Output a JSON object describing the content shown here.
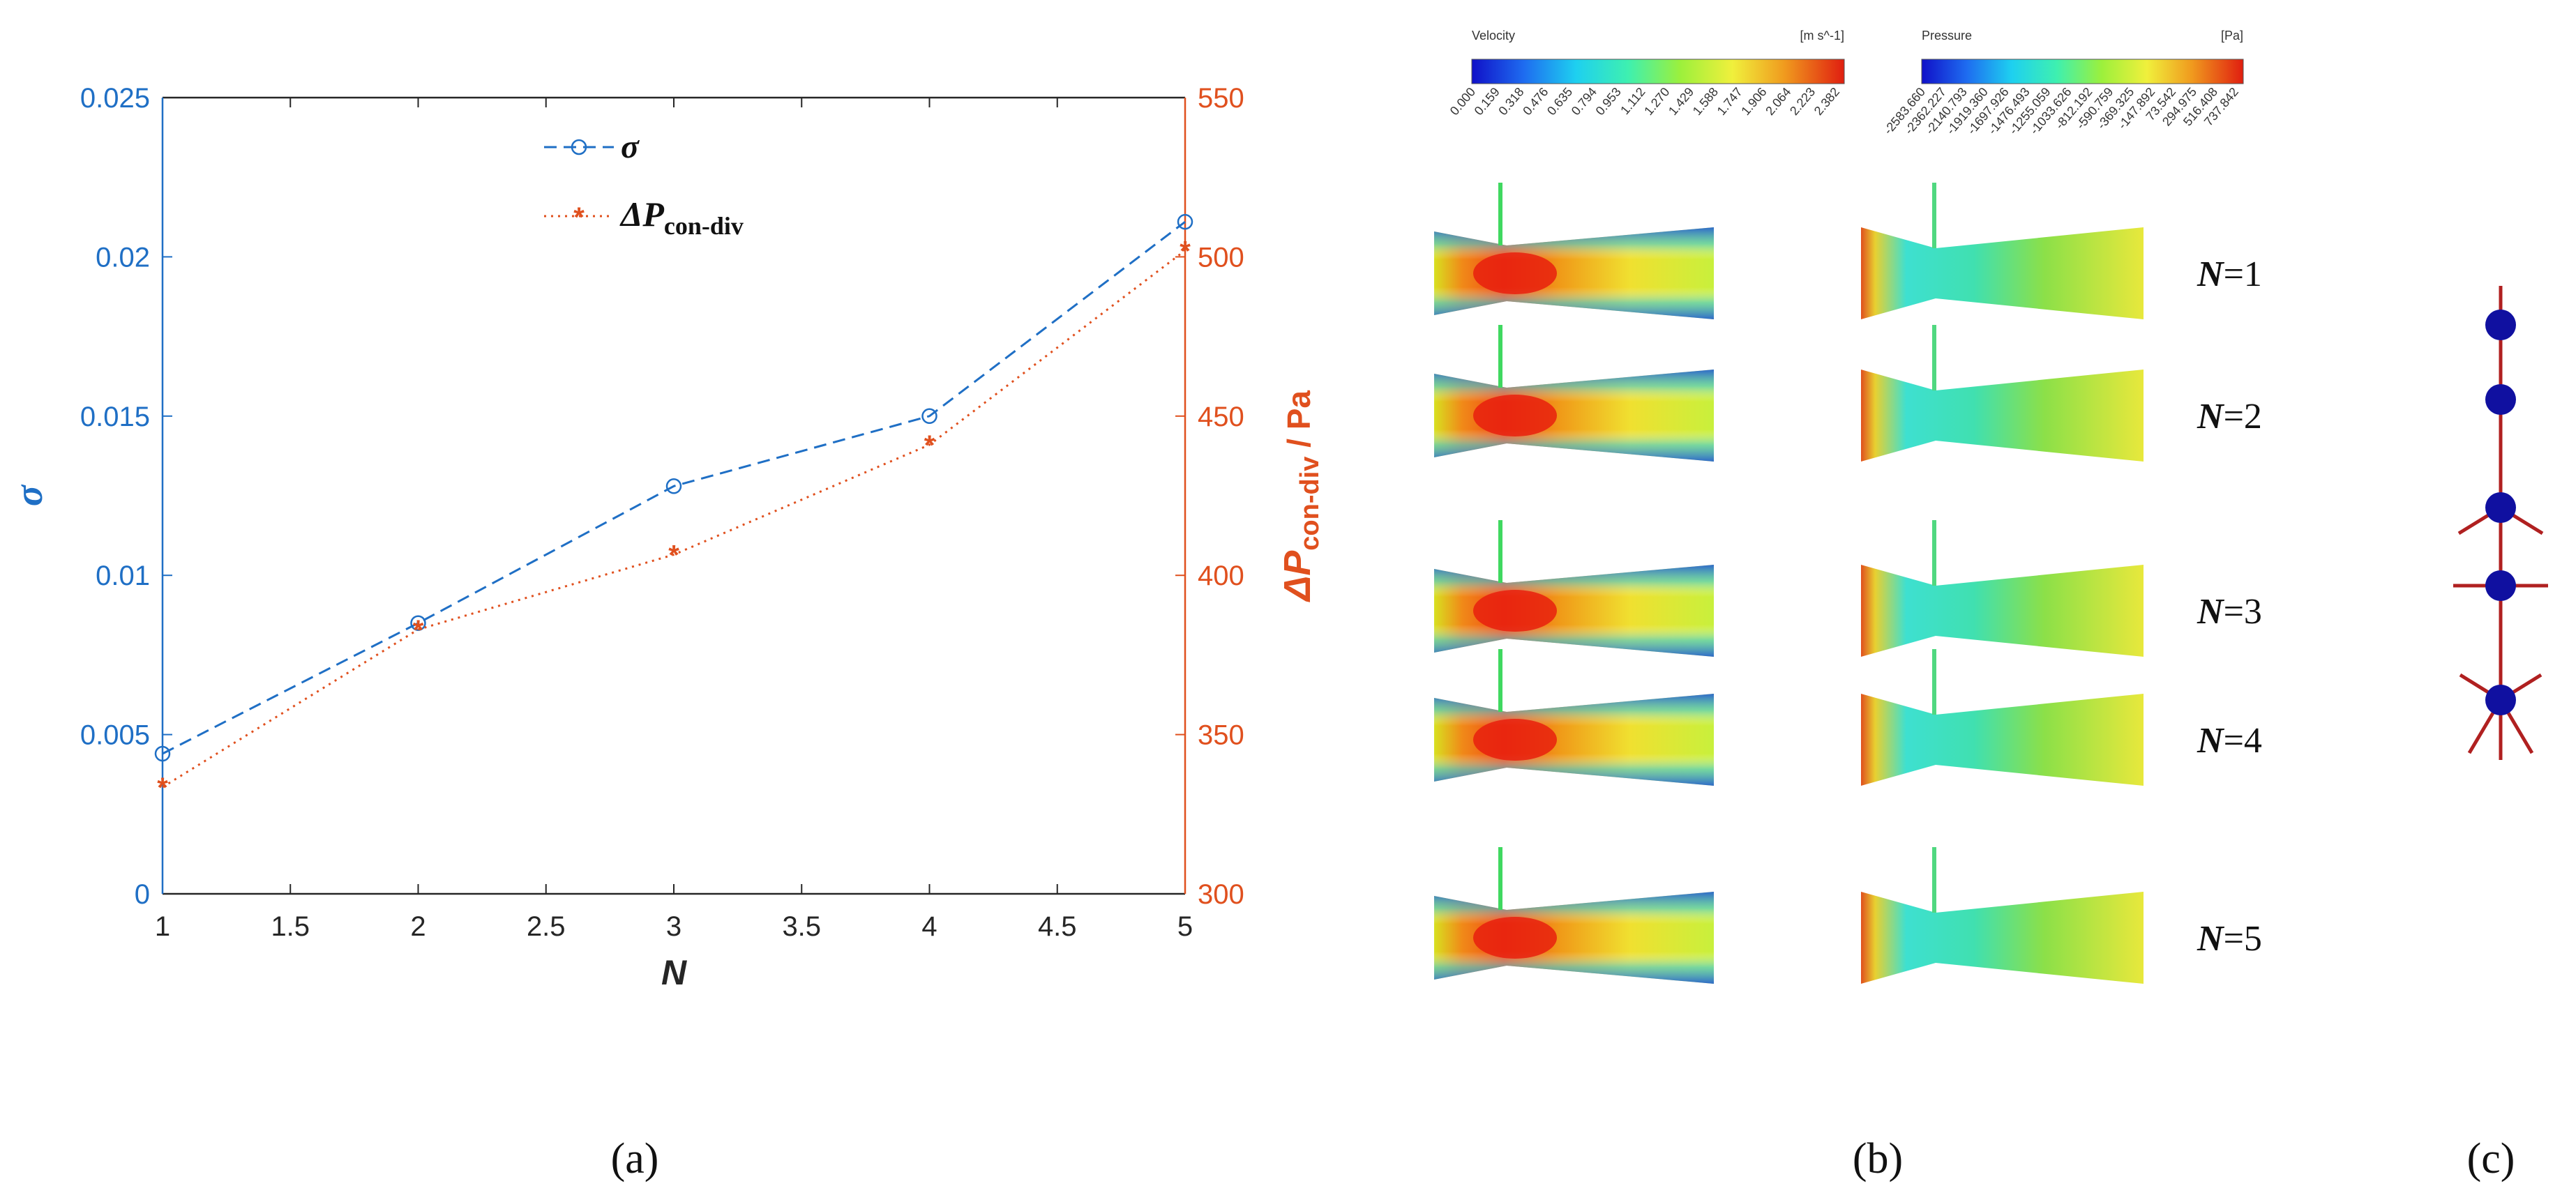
{
  "chart_data": [
    {
      "type": "line",
      "panel_label": "(a)",
      "x": [
        1,
        2,
        3,
        4,
        5
      ],
      "xlabel": "N",
      "xlim": [
        1,
        5
      ],
      "xticks": [
        "1",
        "1.5",
        "2",
        "2.5",
        "3",
        "3.5",
        "4",
        "4.5",
        "5"
      ],
      "ylabel_left": "σ",
      "ylim_left": [
        0,
        0.025
      ],
      "yticks_left": [
        "0",
        "0.005",
        "0.01",
        "0.015",
        "0.02",
        "0.025"
      ],
      "ylabel_right_main": "ΔP",
      "ylabel_right_sub": "con-div",
      "ylabel_right_unit": " / Pa",
      "ylim_right": [
        300,
        550
      ],
      "yticks_right": [
        "300",
        "350",
        "400",
        "450",
        "500",
        "550"
      ],
      "series": [
        {
          "name": "σ",
          "axis": "left",
          "marker": "circle",
          "style": "dashed",
          "color": "#1f6fc5",
          "values": [
            0.0044,
            0.0085,
            0.0128,
            0.015,
            0.0211
          ]
        },
        {
          "name": "ΔP",
          "name_sub": "con-div",
          "axis": "right",
          "marker": "star",
          "style": "dotted",
          "color": "#e0501e",
          "values": [
            333.5,
            383,
            406.5,
            441,
            502
          ]
        }
      ]
    }
  ],
  "panel_b": {
    "label": "(b)",
    "velocity_bar": {
      "title": "Velocity",
      "unit": "[m s^-1]",
      "ticks": [
        "0.000",
        "0.159",
        "0.318",
        "0.476",
        "0.635",
        "0.794",
        "0.953",
        "1.112",
        "1.270",
        "1.429",
        "1.588",
        "1.747",
        "1.906",
        "2.064",
        "2.223",
        "2.382"
      ]
    },
    "pressure_bar": {
      "title": "Pressure",
      "unit": "[Pa]",
      "ticks": [
        "-2583.660",
        "-2362.227",
        "-2140.793",
        "-1919.360",
        "-1697.926",
        "-1476.493",
        "-1255.059",
        "-1033.626",
        "-812.192",
        "-590.759",
        "-369.325",
        "-147.892",
        "73.542",
        "294.975",
        "516.408",
        "737.842"
      ]
    },
    "rows": [
      {
        "n_label": "N",
        "n_value": "=1"
      },
      {
        "n_label": "N",
        "n_value": "=2"
      },
      {
        "n_label": "N",
        "n_value": "=3"
      },
      {
        "n_label": "N",
        "n_value": "=4"
      },
      {
        "n_label": "N",
        "n_value": "=5"
      }
    ]
  },
  "panel_c": {
    "label": "(c)"
  },
  "colors": {
    "left_axis": "#1f6fc5",
    "right_axis": "#e0501e",
    "node": "#1010a0",
    "branch": "#b02020"
  }
}
